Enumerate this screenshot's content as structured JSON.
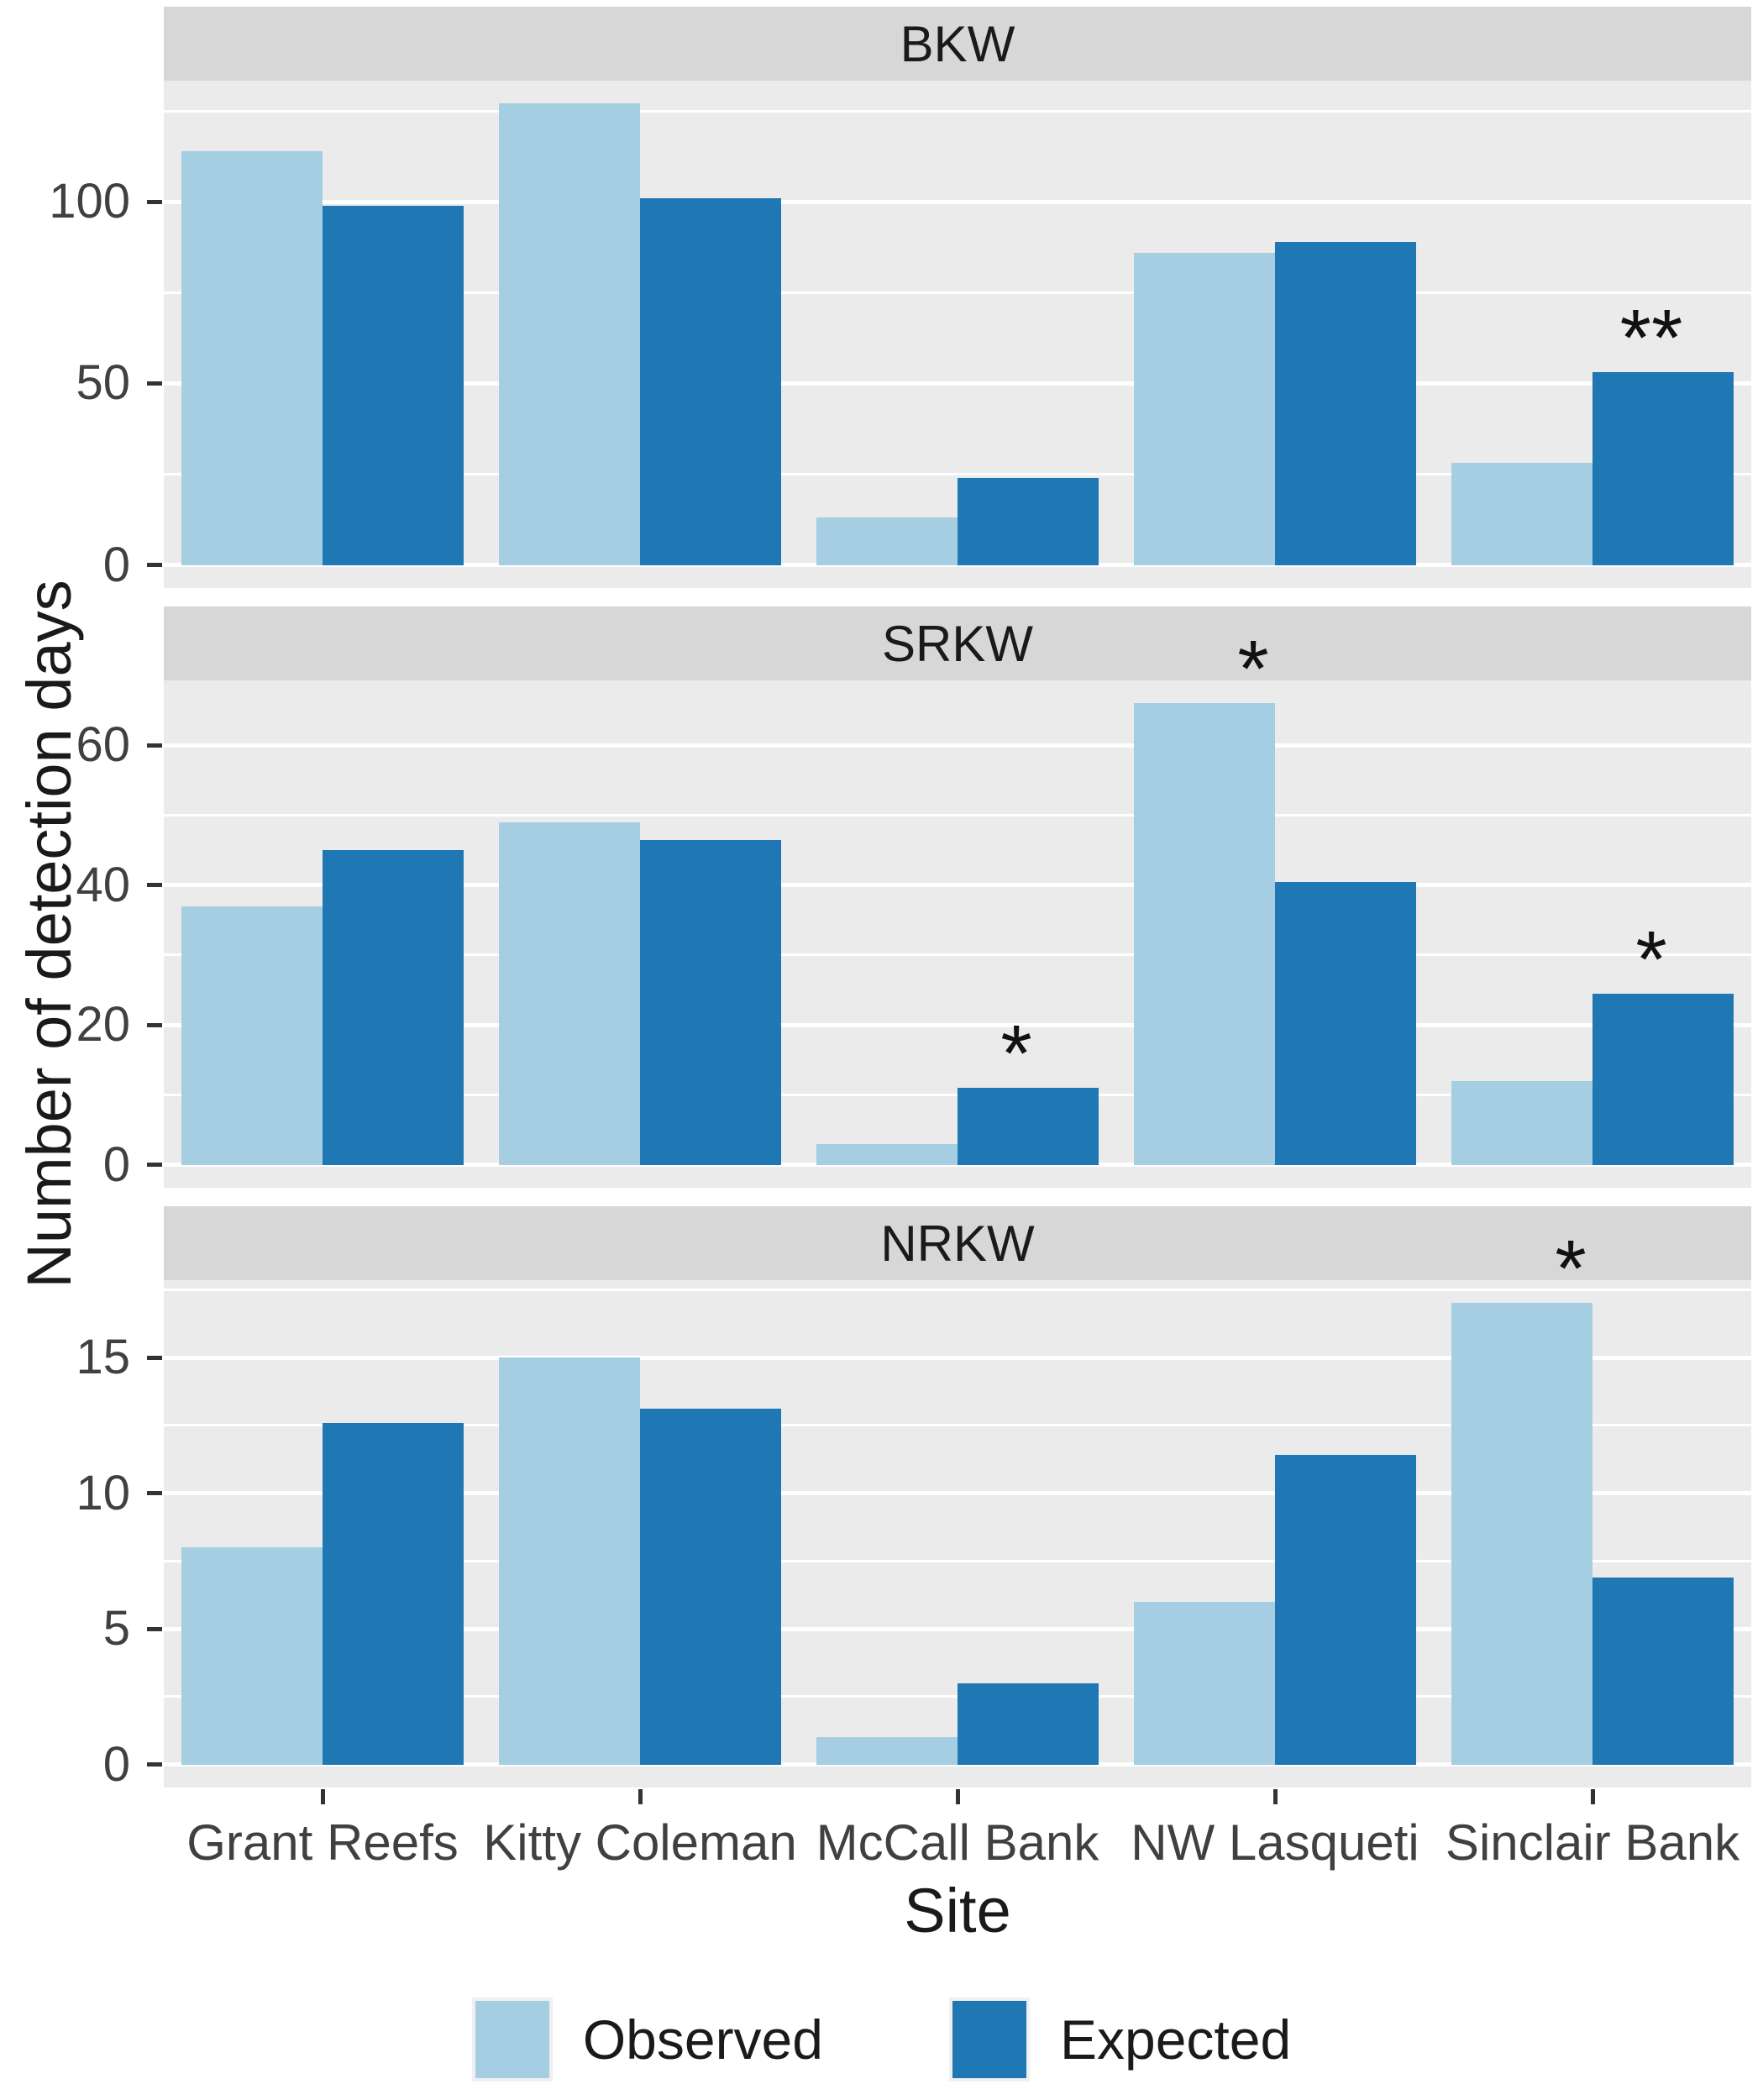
{
  "chart_data": {
    "type": "bar",
    "title": "",
    "xlabel": "Site",
    "ylabel": "Number of detection days",
    "categories": [
      "Grant Reefs",
      "Kitty Coleman",
      "McCall Bank",
      "NW Lasqueti",
      "Sinclair Bank"
    ],
    "legend": [
      {
        "name": "Observed",
        "color": "#A6CEE3"
      },
      {
        "name": "Expected",
        "color": "#1F78B4"
      }
    ],
    "layout": {
      "grid": "on",
      "legend_position": "bottom",
      "panel_bg": "#EBEBEB",
      "strip_bg": "#D7D7D7",
      "grid_color": "#FFFFFF",
      "facet_order": "rows"
    },
    "facets": [
      {
        "label": "BKW",
        "ylim": [
          0,
          133
        ],
        "major_ticks": [
          0,
          50,
          100
        ],
        "minor_ticks": [
          25,
          75,
          125
        ],
        "series": [
          {
            "name": "Observed",
            "values": [
              114,
              127,
              13,
              86,
              28
            ]
          },
          {
            "name": "Expected",
            "values": [
              99,
              101,
              24,
              89,
              53
            ]
          }
        ],
        "annotations": [
          {
            "category": "Sinclair Bank",
            "series": "Expected",
            "text": "**"
          }
        ]
      },
      {
        "label": "SRKW",
        "ylim": [
          0,
          69.3
        ],
        "major_ticks": [
          0,
          20,
          40,
          60
        ],
        "minor_ticks": [
          10,
          30,
          50,
          70
        ],
        "series": [
          {
            "name": "Observed",
            "values": [
              37,
              49,
              3,
              66,
              12
            ]
          },
          {
            "name": "Expected",
            "values": [
              45,
              46.5,
              11,
              40.5,
              24.5
            ]
          }
        ],
        "annotations": [
          {
            "category": "McCall Bank",
            "series": "Expected",
            "text": "*"
          },
          {
            "category": "NW Lasqueti",
            "series": "Observed",
            "text": "*"
          },
          {
            "category": "Sinclair Bank",
            "series": "Expected",
            "text": "*"
          }
        ]
      },
      {
        "label": "NRKW",
        "ylim": [
          0,
          17.9
        ],
        "major_ticks": [
          0,
          5,
          10,
          15
        ],
        "minor_ticks": [
          2.5,
          7.5,
          12.5,
          17.5
        ],
        "series": [
          {
            "name": "Observed",
            "values": [
              8,
              15,
              1,
              6,
              17
            ]
          },
          {
            "name": "Expected",
            "values": [
              12.6,
              13.1,
              3,
              11.4,
              6.9
            ]
          }
        ],
        "annotations": [
          {
            "category": "Sinclair Bank",
            "series": "Observed",
            "text": "*"
          }
        ]
      }
    ]
  }
}
